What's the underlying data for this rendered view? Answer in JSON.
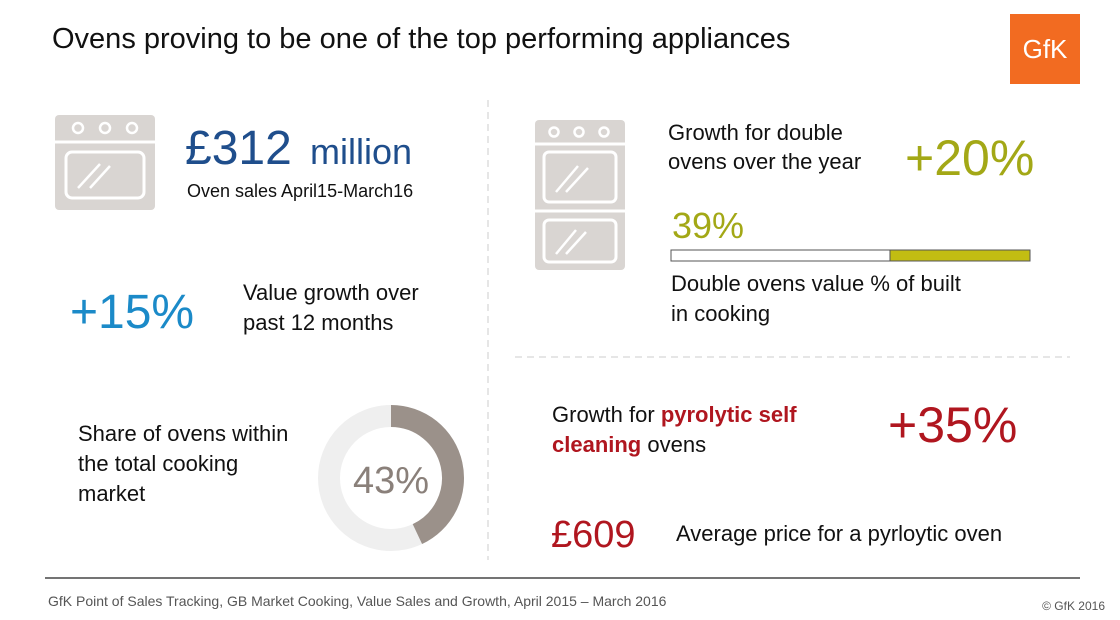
{
  "header": {
    "title": "Ovens proving to be one of the top performing appliances",
    "logo": "GfK"
  },
  "sales": {
    "amount": "£312",
    "unit": "million",
    "caption": "Oven sales April15-March16"
  },
  "value_growth": {
    "figure": "+15%",
    "lines": [
      "Value growth over",
      "past 12 months"
    ]
  },
  "share": {
    "lines": [
      "Share of ovens within",
      "the total cooking",
      "market"
    ],
    "donut": {
      "value": 43,
      "label": "43%"
    }
  },
  "double_ovens": {
    "lines": [
      "Growth for double",
      "ovens over the year"
    ],
    "figure": "+20%",
    "bar": {
      "value": 39,
      "label": "39%"
    },
    "bar_caption": [
      "Double ovens value % of built",
      "in cooking"
    ]
  },
  "pyrolytic": {
    "line1": [
      "Growth for ",
      "pyrolytic self"
    ],
    "line2": [
      "cleaning",
      " ovens"
    ],
    "figure": "+35%"
  },
  "price": {
    "figure": "£609",
    "caption": "Average price for a pyrloytic oven"
  },
  "footer": {
    "source": "GfK Point of Sales Tracking, GB Market Cooking, Value Sales and Growth, April 2015 – March 2016",
    "copyright": "© GfK 2016"
  }
}
